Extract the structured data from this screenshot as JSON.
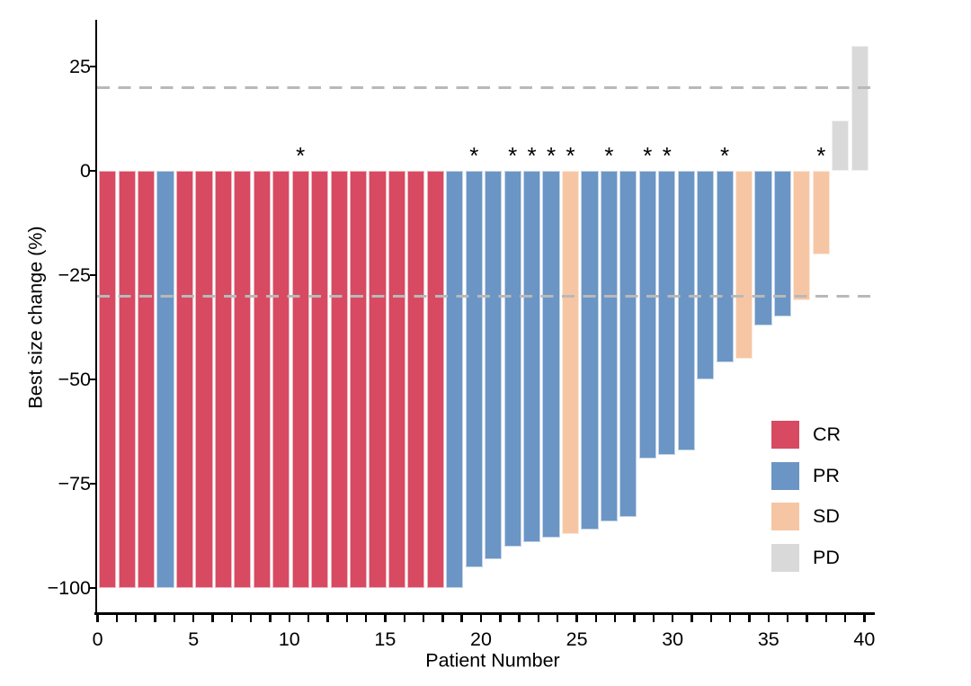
{
  "figure": {
    "background_color": "#ffffff",
    "axis_color": "#000000",
    "dashed_line_color": "#b9b9b9"
  },
  "chart_data": {
    "type": "bar",
    "title": "",
    "xlabel": "Patient Number",
    "ylabel": "Best size change (%)",
    "xlim": [
      0,
      40
    ],
    "ylim": [
      -100,
      30
    ],
    "grid": "off",
    "x_major_ticks": [
      0,
      5,
      10,
      15,
      20,
      25,
      30,
      35,
      40
    ],
    "x_minor_tick_every": 1,
    "y_ticks": [
      25,
      0,
      -25,
      -50,
      -75,
      -100
    ],
    "y_tick_labels": [
      "25",
      "0",
      "−25",
      "−50",
      "−75",
      "−100"
    ],
    "reference_lines": {
      "upper": 20,
      "lower": -30
    },
    "legend": {
      "position": "right-middle",
      "entries": [
        {
          "label": "CR",
          "color": "#d74a61"
        },
        {
          "label": "PR",
          "color": "#6b95c4"
        },
        {
          "label": "SD",
          "color": "#f6c6a4"
        },
        {
          "label": "PD",
          "color": "#d9d9d9"
        }
      ]
    },
    "star_annotation_glyph": "*",
    "starred_patients": [
      11,
      20,
      22,
      23,
      24,
      25,
      27,
      29,
      30,
      33,
      38
    ],
    "bars": [
      {
        "patient": 1,
        "value": -100,
        "response": "CR",
        "star": false
      },
      {
        "patient": 2,
        "value": -100,
        "response": "CR",
        "star": false
      },
      {
        "patient": 3,
        "value": -100,
        "response": "CR",
        "star": false
      },
      {
        "patient": 4,
        "value": -100,
        "response": "PR",
        "star": false
      },
      {
        "patient": 5,
        "value": -100,
        "response": "CR",
        "star": false
      },
      {
        "patient": 6,
        "value": -100,
        "response": "CR",
        "star": false
      },
      {
        "patient": 7,
        "value": -100,
        "response": "CR",
        "star": false
      },
      {
        "patient": 8,
        "value": -100,
        "response": "CR",
        "star": false
      },
      {
        "patient": 9,
        "value": -100,
        "response": "CR",
        "star": false
      },
      {
        "patient": 10,
        "value": -100,
        "response": "CR",
        "star": false
      },
      {
        "patient": 11,
        "value": -100,
        "response": "CR",
        "star": true
      },
      {
        "patient": 12,
        "value": -100,
        "response": "CR",
        "star": false
      },
      {
        "patient": 13,
        "value": -100,
        "response": "CR",
        "star": false
      },
      {
        "patient": 14,
        "value": -100,
        "response": "CR",
        "star": false
      },
      {
        "patient": 15,
        "value": -100,
        "response": "CR",
        "star": false
      },
      {
        "patient": 16,
        "value": -100,
        "response": "CR",
        "star": false
      },
      {
        "patient": 17,
        "value": -100,
        "response": "CR",
        "star": false
      },
      {
        "patient": 18,
        "value": -100,
        "response": "CR",
        "star": false
      },
      {
        "patient": 19,
        "value": -100,
        "response": "PR",
        "star": false
      },
      {
        "patient": 20,
        "value": -95,
        "response": "PR",
        "star": true
      },
      {
        "patient": 21,
        "value": -93,
        "response": "PR",
        "star": false
      },
      {
        "patient": 22,
        "value": -90,
        "response": "PR",
        "star": true
      },
      {
        "patient": 23,
        "value": -89,
        "response": "PR",
        "star": true
      },
      {
        "patient": 24,
        "value": -88,
        "response": "PR",
        "star": true
      },
      {
        "patient": 25,
        "value": -87,
        "response": "SD",
        "star": true
      },
      {
        "patient": 26,
        "value": -86,
        "response": "PR",
        "star": false
      },
      {
        "patient": 27,
        "value": -84,
        "response": "PR",
        "star": true
      },
      {
        "patient": 28,
        "value": -83,
        "response": "PR",
        "star": false
      },
      {
        "patient": 29,
        "value": -69,
        "response": "PR",
        "star": true
      },
      {
        "patient": 30,
        "value": -68,
        "response": "PR",
        "star": true
      },
      {
        "patient": 31,
        "value": -67,
        "response": "PR",
        "star": false
      },
      {
        "patient": 32,
        "value": -50,
        "response": "PR",
        "star": false
      },
      {
        "patient": 33,
        "value": -46,
        "response": "PR",
        "star": true
      },
      {
        "patient": 34,
        "value": -45,
        "response": "SD",
        "star": false
      },
      {
        "patient": 35,
        "value": -37,
        "response": "PR",
        "star": false
      },
      {
        "patient": 36,
        "value": -35,
        "response": "PR",
        "star": false
      },
      {
        "patient": 37,
        "value": -31,
        "response": "SD",
        "star": false
      },
      {
        "patient": 38,
        "value": -20,
        "response": "SD",
        "star": true
      },
      {
        "patient": 39,
        "value": 12,
        "response": "PD",
        "star": false
      },
      {
        "patient": 40,
        "value": 30,
        "response": "PD",
        "star": false
      }
    ]
  }
}
